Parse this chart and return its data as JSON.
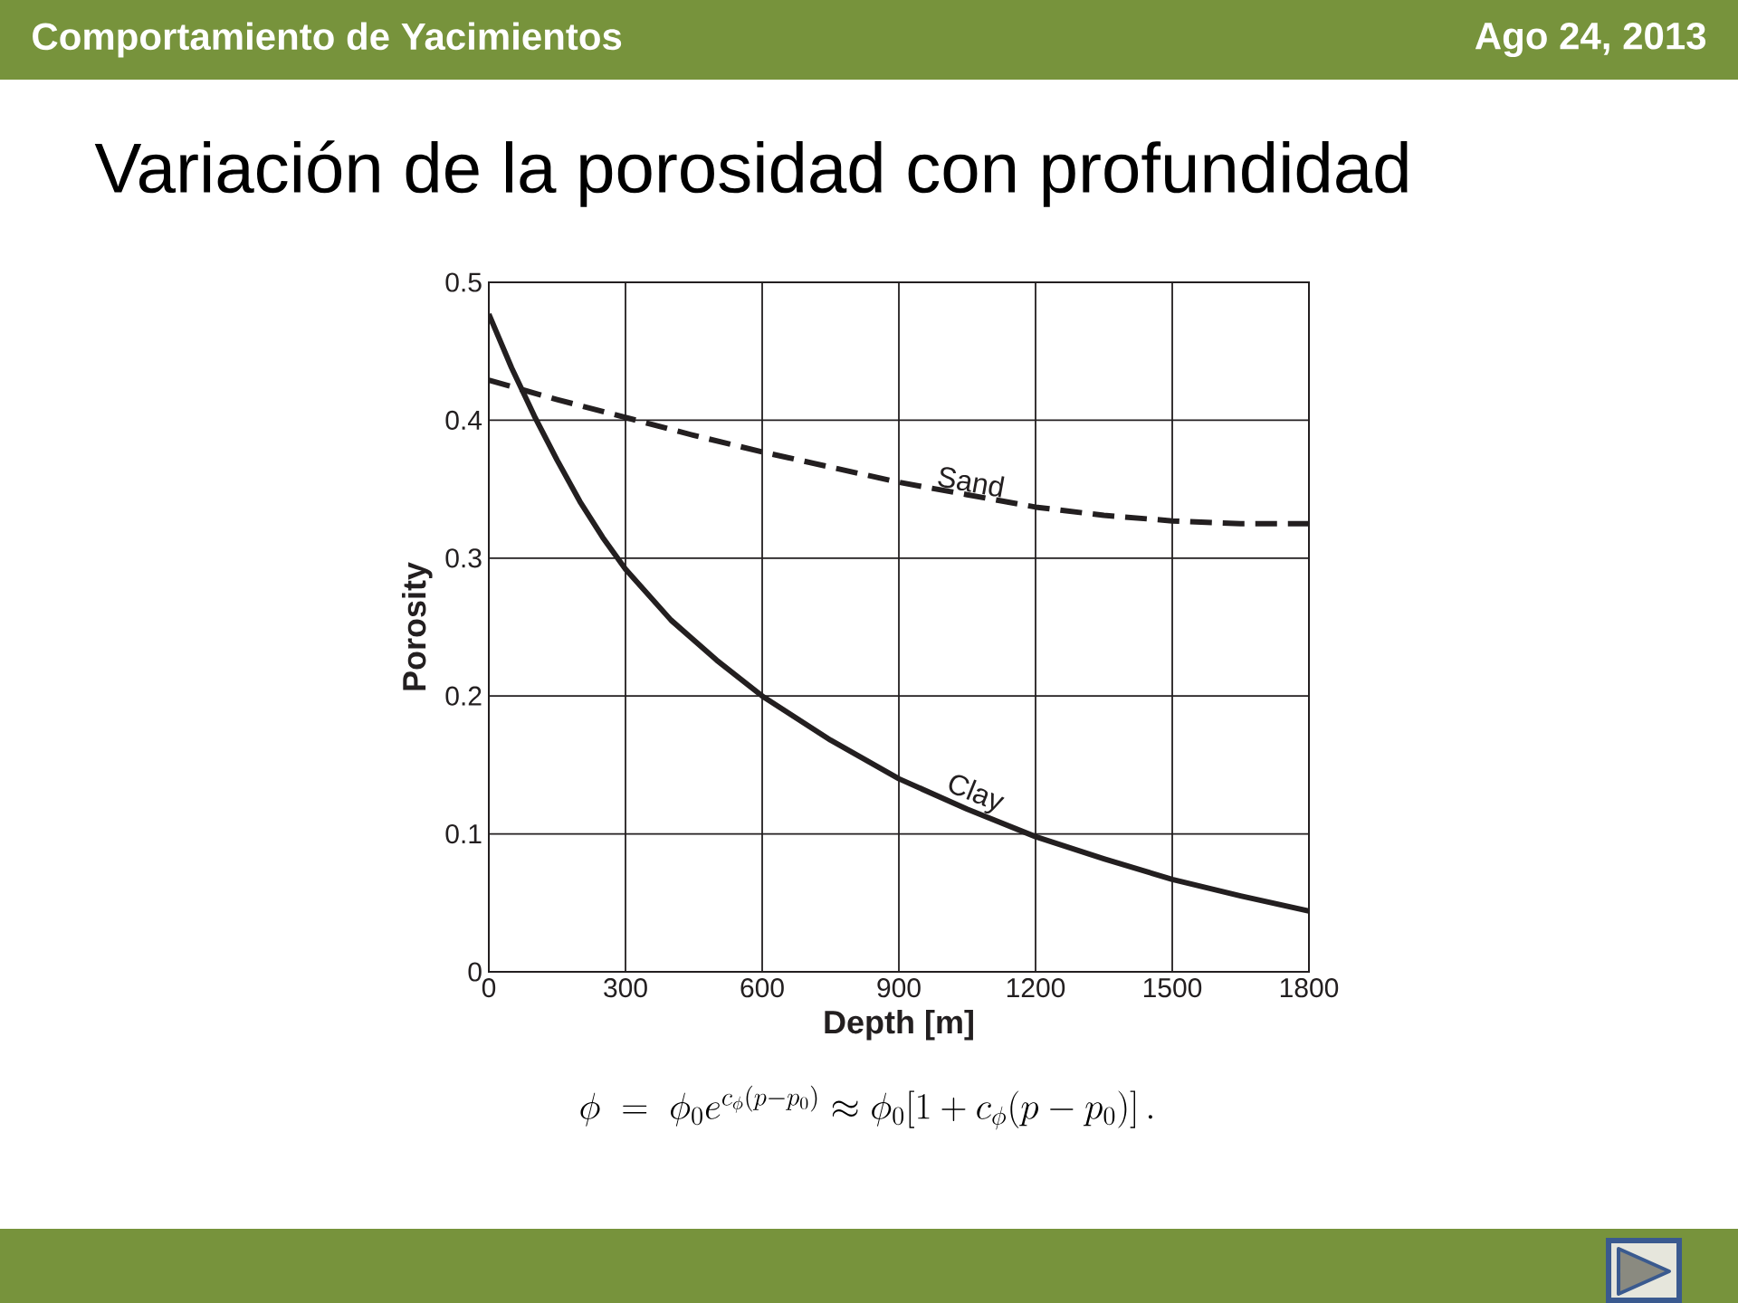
{
  "chart_data": {
    "type": "line",
    "title": "Variación de la porosidad con profundidad",
    "xlabel": "Depth [m]",
    "ylabel": "Porosity",
    "annotations": [
      "Comportamiento de Yacimientos",
      "Ago 24, 2013",
      "\\phi \\;=\\; \\phi_0 e^{c_\\phi (p - p_0)} \\approx \\phi_0 [1 + c_\\phi (p - p_0)]\\,."
    ],
    "series": [
      {
        "name": "Sand",
        "color": "#231f20",
        "line_style": "dashed",
        "x": [
          0,
          150,
          300,
          450,
          600,
          750,
          900,
          1050,
          1200,
          1350,
          1500,
          1650,
          1800
        ],
        "values": [
          0.429,
          0.415,
          0.402,
          0.389,
          0.377,
          0.366,
          0.355,
          0.346,
          0.337,
          0.331,
          0.327,
          0.325,
          0.325
        ]
      },
      {
        "name": "Clay",
        "color": "#231f20",
        "line_style": "solid",
        "x": [
          0,
          50,
          100,
          150,
          200,
          250,
          300,
          400,
          500,
          600,
          750,
          900,
          1050,
          1200,
          1350,
          1500,
          1650,
          1800
        ],
        "values": [
          0.477,
          0.438,
          0.403,
          0.371,
          0.341,
          0.315,
          0.292,
          0.255,
          0.226,
          0.2,
          0.168,
          0.14,
          0.118,
          0.098,
          0.082,
          0.067,
          0.055,
          0.044
        ]
      }
    ],
    "xlim": [
      0,
      1800
    ],
    "ylim": [
      0,
      0.5
    ],
    "xticks": [
      0,
      300,
      600,
      900,
      1200,
      1500,
      1800
    ],
    "yticks": [
      0,
      0.1,
      0.2,
      0.3,
      0.4,
      0.5
    ],
    "grid": true,
    "marker": "none"
  }
}
